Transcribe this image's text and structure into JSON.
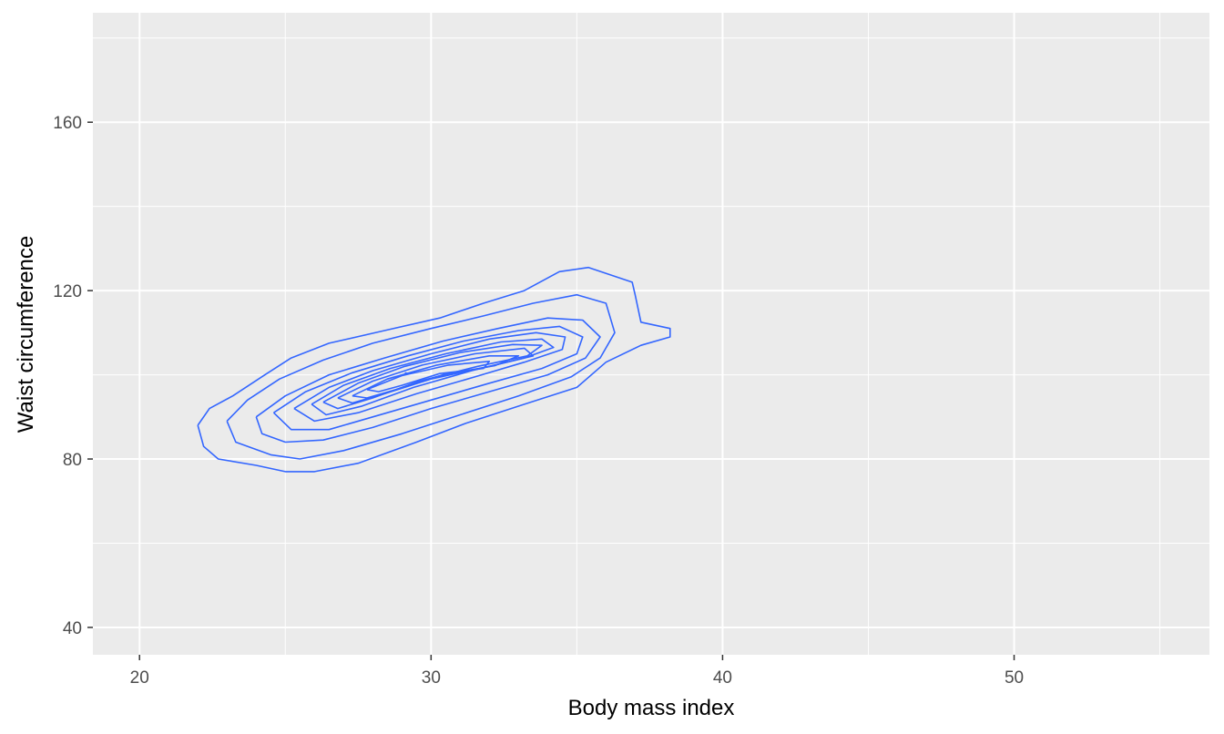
{
  "chart_data": {
    "type": "density2d",
    "title": "",
    "xlabel": "Body mass index",
    "ylabel": "Waist circumference",
    "xlim": [
      18.4,
      56.7
    ],
    "ylim": [
      33.5,
      186
    ],
    "x_ticks": [
      20,
      30,
      40,
      50
    ],
    "y_ticks": [
      40,
      80,
      120,
      160
    ],
    "x_minor": [
      25,
      35,
      45,
      55
    ],
    "y_minor": [
      60,
      100,
      140,
      180
    ],
    "grid": true,
    "legend": "none",
    "colors": {
      "panel": "#ebebeb",
      "grid": "#ffffff",
      "contour": "#3366ff",
      "tick": "#333333",
      "text": "#4d4d4d"
    },
    "series": [
      {
        "points": [
          [
            22.0,
            88
          ],
          [
            22.4,
            92
          ],
          [
            23.2,
            95
          ],
          [
            24.3,
            100
          ],
          [
            25.2,
            104
          ],
          [
            26.5,
            107.5
          ],
          [
            28.4,
            110.5
          ],
          [
            30.3,
            113.5
          ],
          [
            31.8,
            117
          ],
          [
            33.2,
            120
          ],
          [
            34.4,
            124.5
          ],
          [
            35.4,
            125.5
          ],
          [
            36.9,
            122
          ],
          [
            37.0,
            119
          ],
          [
            37.2,
            112.5
          ],
          [
            38.2,
            111
          ],
          [
            38.2,
            109
          ],
          [
            37.2,
            107
          ],
          [
            36.0,
            103
          ],
          [
            35.0,
            97
          ],
          [
            33.2,
            93
          ],
          [
            31.2,
            88.5
          ],
          [
            29.5,
            84
          ],
          [
            27.5,
            79
          ],
          [
            26.0,
            77
          ],
          [
            25.0,
            77
          ],
          [
            24.0,
            78.5
          ],
          [
            22.7,
            80
          ],
          [
            22.2,
            83
          ],
          [
            22.0,
            88
          ]
        ]
      },
      {
        "points": [
          [
            23.0,
            89
          ],
          [
            23.7,
            94
          ],
          [
            24.8,
            99
          ],
          [
            26.3,
            103.5
          ],
          [
            28.0,
            107.5
          ],
          [
            30.0,
            111
          ],
          [
            31.8,
            114
          ],
          [
            33.5,
            117
          ],
          [
            35.0,
            119
          ],
          [
            36.0,
            117
          ],
          [
            36.3,
            110
          ],
          [
            35.8,
            104
          ],
          [
            34.8,
            99.5
          ],
          [
            33.0,
            95
          ],
          [
            31.0,
            90.5
          ],
          [
            29.0,
            86
          ],
          [
            27.0,
            82
          ],
          [
            25.5,
            80
          ],
          [
            24.5,
            81
          ],
          [
            23.3,
            84
          ],
          [
            23.0,
            89
          ]
        ]
      },
      {
        "points": [
          [
            24.0,
            90
          ],
          [
            25.0,
            95
          ],
          [
            26.5,
            100
          ],
          [
            28.4,
            104
          ],
          [
            30.4,
            108
          ],
          [
            32.3,
            111
          ],
          [
            34.0,
            113.5
          ],
          [
            35.2,
            113
          ],
          [
            35.8,
            109
          ],
          [
            35.3,
            104
          ],
          [
            34.0,
            100
          ],
          [
            32.0,
            96
          ],
          [
            30.0,
            92
          ],
          [
            28.0,
            87.5
          ],
          [
            26.3,
            84.5
          ],
          [
            25.0,
            84
          ],
          [
            24.2,
            86
          ],
          [
            24.0,
            90
          ]
        ]
      },
      {
        "points": [
          [
            24.6,
            91
          ],
          [
            25.7,
            96
          ],
          [
            27.3,
            100.5
          ],
          [
            29.2,
            104.5
          ],
          [
            31.1,
            108
          ],
          [
            33.0,
            110.5
          ],
          [
            34.4,
            111.5
          ],
          [
            35.2,
            109
          ],
          [
            35.0,
            105
          ],
          [
            33.8,
            101.5
          ],
          [
            32.0,
            98
          ],
          [
            30.0,
            94
          ],
          [
            28.0,
            90
          ],
          [
            26.5,
            87
          ],
          [
            25.2,
            87
          ],
          [
            24.6,
            91
          ]
        ]
      },
      {
        "points": [
          [
            25.3,
            92
          ],
          [
            26.5,
            97
          ],
          [
            28.0,
            101
          ],
          [
            30.0,
            105
          ],
          [
            32.0,
            108.5
          ],
          [
            33.6,
            110
          ],
          [
            34.6,
            109
          ],
          [
            34.5,
            106
          ],
          [
            33.2,
            103
          ],
          [
            31.5,
            99.5
          ],
          [
            29.5,
            95.5
          ],
          [
            27.5,
            91
          ],
          [
            26.0,
            89
          ],
          [
            25.3,
            92
          ]
        ]
      },
      {
        "points": [
          [
            25.9,
            93
          ],
          [
            27.0,
            97.5
          ],
          [
            28.6,
            101.5
          ],
          [
            30.5,
            105
          ],
          [
            32.4,
            107.8
          ],
          [
            33.8,
            108.5
          ],
          [
            34.2,
            106.5
          ],
          [
            33.2,
            104
          ],
          [
            31.4,
            101
          ],
          [
            29.4,
            97
          ],
          [
            27.6,
            92.5
          ],
          [
            26.4,
            90.5
          ],
          [
            25.9,
            93
          ]
        ]
      },
      {
        "points": [
          [
            26.3,
            93.5
          ],
          [
            27.5,
            98
          ],
          [
            29.1,
            102
          ],
          [
            31.0,
            105.3
          ],
          [
            32.8,
            107.2
          ],
          [
            33.8,
            107
          ],
          [
            33.3,
            104.5
          ],
          [
            31.6,
            102
          ],
          [
            29.6,
            98.5
          ],
          [
            28.0,
            94.5
          ],
          [
            26.8,
            92
          ],
          [
            26.3,
            93.5
          ]
        ]
      },
      {
        "points": [
          [
            26.8,
            94.5
          ],
          [
            28.0,
            98.5
          ],
          [
            29.7,
            102.3
          ],
          [
            31.5,
            105
          ],
          [
            33.2,
            106.3
          ],
          [
            33.5,
            104.5
          ],
          [
            32.0,
            102
          ],
          [
            30.0,
            99
          ],
          [
            28.4,
            95.5
          ],
          [
            27.3,
            93.3
          ],
          [
            26.8,
            94.5
          ]
        ]
      },
      {
        "points": [
          [
            27.3,
            95
          ],
          [
            28.5,
            99
          ],
          [
            30.2,
            102.3
          ],
          [
            32.0,
            104.5
          ],
          [
            33.0,
            104.5
          ],
          [
            32.2,
            102.2
          ],
          [
            30.4,
            100
          ],
          [
            28.8,
            96.5
          ],
          [
            27.8,
            94.5
          ],
          [
            27.3,
            95
          ]
        ]
      },
      {
        "points": [
          [
            27.8,
            96.5
          ],
          [
            29.0,
            99.8
          ],
          [
            30.6,
            102.3
          ],
          [
            32.0,
            103.2
          ],
          [
            31.8,
            101.5
          ],
          [
            30.3,
            100.3
          ],
          [
            29.0,
            97.5
          ],
          [
            28.2,
            96
          ],
          [
            27.8,
            96.5
          ]
        ]
      },
      {
        "points": [
          [
            29.1,
            100.5
          ],
          [
            29.2,
            100.3
          ]
        ]
      }
    ]
  }
}
